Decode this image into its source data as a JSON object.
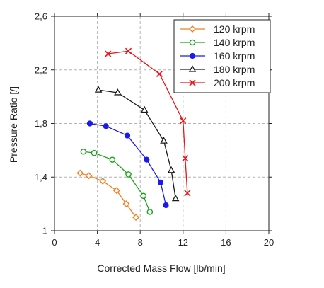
{
  "chart_data": {
    "type": "line",
    "title": "",
    "xlabel": "Corrected Mass Flow [lb/min]",
    "ylabel": "Pressure Ratio [/]",
    "xlim": [
      0,
      20
    ],
    "ylim": [
      1.0,
      2.6
    ],
    "x_ticks": [
      0,
      4,
      8,
      12,
      16,
      20
    ],
    "x_tick_labels": [
      "0",
      "4",
      "8",
      "12",
      "16",
      "20"
    ],
    "y_ticks": [
      1.0,
      1.4,
      1.8,
      2.2,
      2.6
    ],
    "y_tick_labels": [
      "1",
      "1,4",
      "1,8",
      "2,2",
      "2,6"
    ],
    "grid": true,
    "legend_position": "top-right",
    "series": [
      {
        "name": "120 krpm",
        "color": "#f07f20",
        "marker": "diamond-open",
        "x": [
          2.4,
          3.2,
          4.5,
          5.8,
          6.7,
          7.6
        ],
        "y": [
          1.43,
          1.41,
          1.37,
          1.3,
          1.2,
          1.1
        ]
      },
      {
        "name": "140 krpm",
        "color": "#19a319",
        "marker": "circle-open",
        "x": [
          2.7,
          3.7,
          5.4,
          6.9,
          8.3,
          8.9
        ],
        "y": [
          1.59,
          1.58,
          1.53,
          1.42,
          1.26,
          1.14
        ]
      },
      {
        "name": "160 krpm",
        "color": "#1a1aee",
        "marker": "circle-filled",
        "x": [
          3.3,
          4.8,
          6.8,
          8.6,
          9.9,
          10.4
        ],
        "y": [
          1.8,
          1.78,
          1.71,
          1.53,
          1.36,
          1.19
        ]
      },
      {
        "name": "180 krpm",
        "color": "#1a1a1a",
        "marker": "triangle-open",
        "x": [
          4.1,
          5.9,
          8.4,
          10.2,
          10.9,
          11.3
        ],
        "y": [
          2.05,
          2.03,
          1.9,
          1.67,
          1.45,
          1.24
        ]
      },
      {
        "name": "200 krpm",
        "color": "#e8161b",
        "marker": "x",
        "x": [
          5.0,
          6.9,
          9.8,
          12.0,
          12.2,
          12.4
        ],
        "y": [
          2.32,
          2.34,
          2.17,
          1.82,
          1.54,
          1.28
        ]
      }
    ]
  }
}
